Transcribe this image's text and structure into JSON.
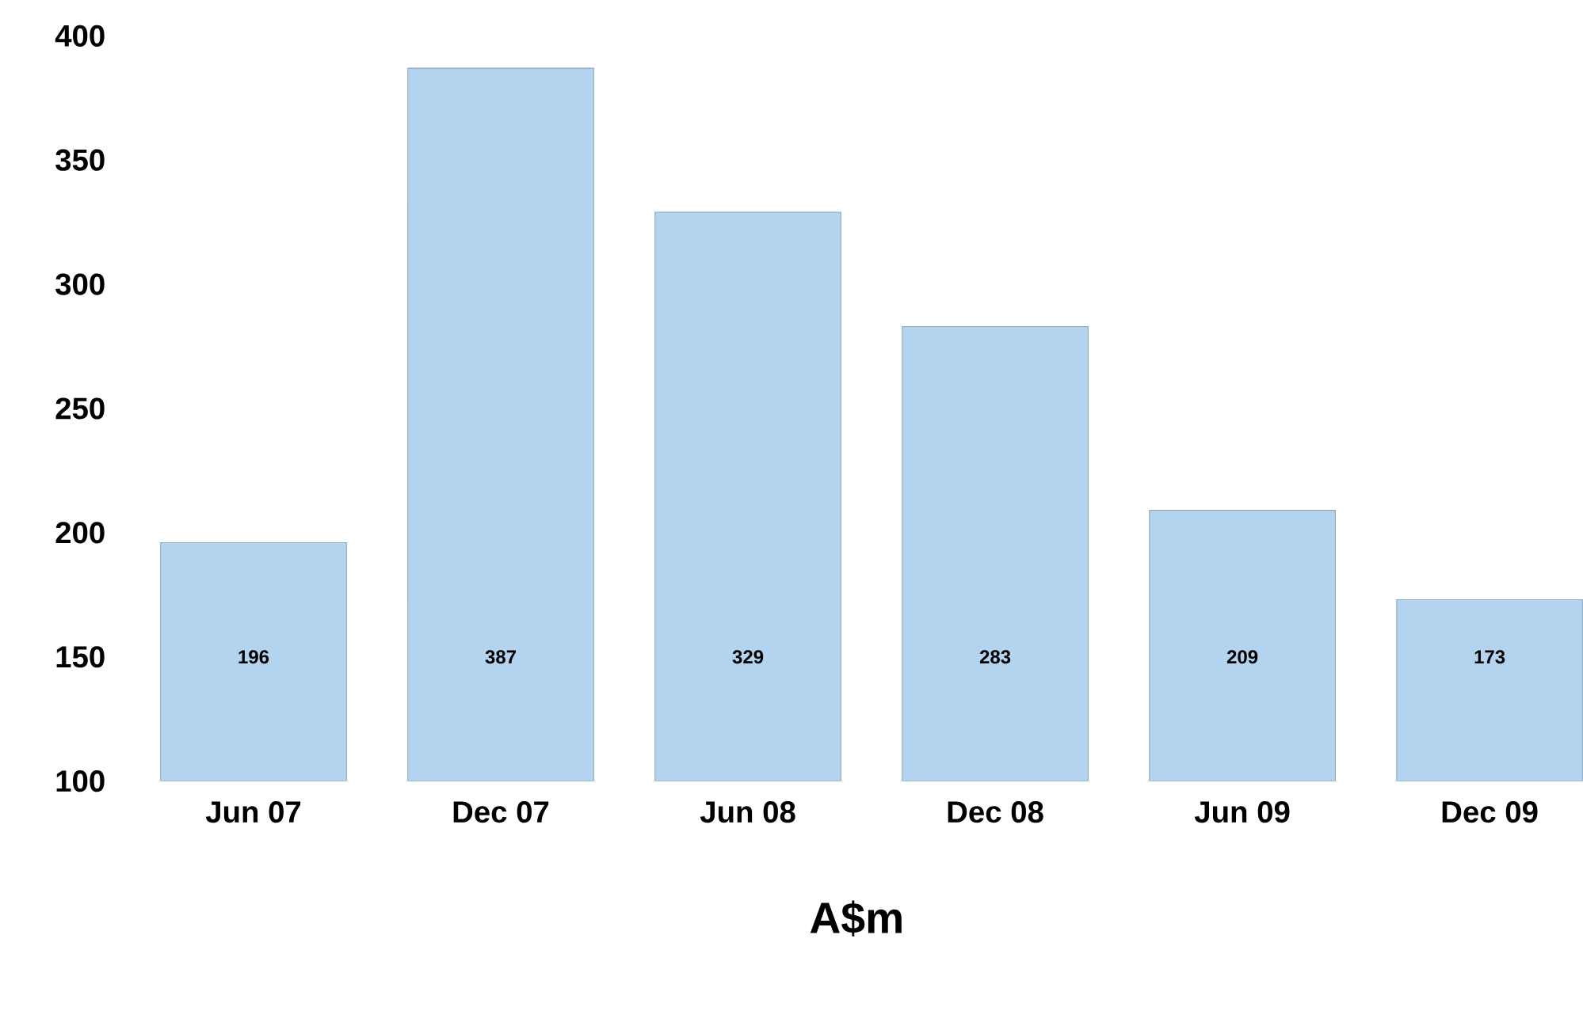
{
  "chart_data": {
    "type": "bar",
    "xlabel": "A$m",
    "categories": [
      "Jun 07",
      "Dec 07",
      "Jun 08",
      "Dec 08",
      "Jun 09",
      "Dec 09"
    ],
    "values": [
      196,
      387,
      329,
      283,
      209,
      173
    ],
    "color": "#b3d3ee",
    "ylim": [
      100,
      400
    ],
    "yticks": [
      100,
      150,
      200,
      250,
      300,
      350,
      400
    ],
    "data_labels": true
  }
}
